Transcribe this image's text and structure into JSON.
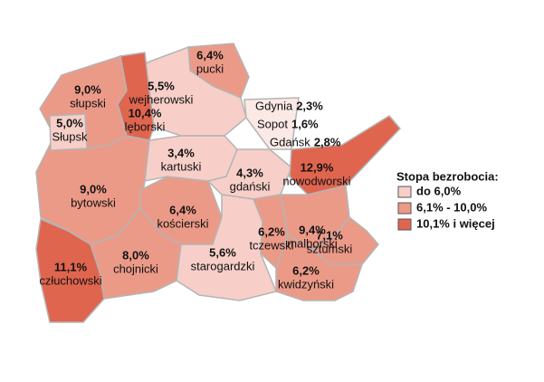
{
  "map": {
    "regions": [
      {
        "name": "pucki",
        "label": "6,4%",
        "color": "#ec9a88"
      },
      {
        "name": "wejherowski",
        "label": "5,5%",
        "color": "#f7cfc8"
      },
      {
        "name": "lęborski",
        "label": "10,4%",
        "color": "#e0654f"
      },
      {
        "name": "słupski",
        "label": "9,0%",
        "color": "#ec9a88"
      },
      {
        "name": "bytowski",
        "label": "9,0%",
        "color": "#ec9a88"
      },
      {
        "name": "człuchowski",
        "label": "11,1%",
        "color": "#e0654f"
      },
      {
        "name": "chojnicki",
        "label": "8,0%",
        "color": "#ec9a88"
      },
      {
        "name": "kościerski",
        "label": "6,4%",
        "color": "#ec9a88"
      },
      {
        "name": "kartuski",
        "label": "3,4%",
        "color": "#f7cfc8"
      },
      {
        "name": "gdański",
        "label": "4,3%",
        "color": "#f7cfc8"
      },
      {
        "name": "starogardzki",
        "label": "5,6%",
        "color": "#f7cfc8"
      },
      {
        "name": "nowodworski",
        "label": "12,9%",
        "color": "#e0654f"
      },
      {
        "name": "malborski",
        "label": "9,4%",
        "color": "#ec9a88"
      },
      {
        "name": "tczewski",
        "label": "6,2%",
        "color": "#ec9a88"
      },
      {
        "name": "sztumski",
        "label": "7,1%",
        "color": "#ec9a88"
      },
      {
        "name": "kwidzyński",
        "label": "6,2%",
        "color": "#ec9a88"
      },
      {
        "name": "Słupsk",
        "label": "5,0%",
        "color": "#f7cfc8"
      }
    ],
    "cities": [
      {
        "name": "Gdynia",
        "label": "2,3%"
      },
      {
        "name": "Sopot",
        "label": "1,6%"
      },
      {
        "name": "Gdańsk",
        "label": "2,8%"
      }
    ],
    "legend": {
      "title": "Stopa bezrobocia:",
      "items": [
        {
          "label": "do 6,0%",
          "color": "#f7cfc8"
        },
        {
          "label": "6,1% - 10,0%",
          "color": "#ec9a88"
        },
        {
          "label": "10,1% i więcej",
          "color": "#e0654f"
        }
      ]
    }
  }
}
